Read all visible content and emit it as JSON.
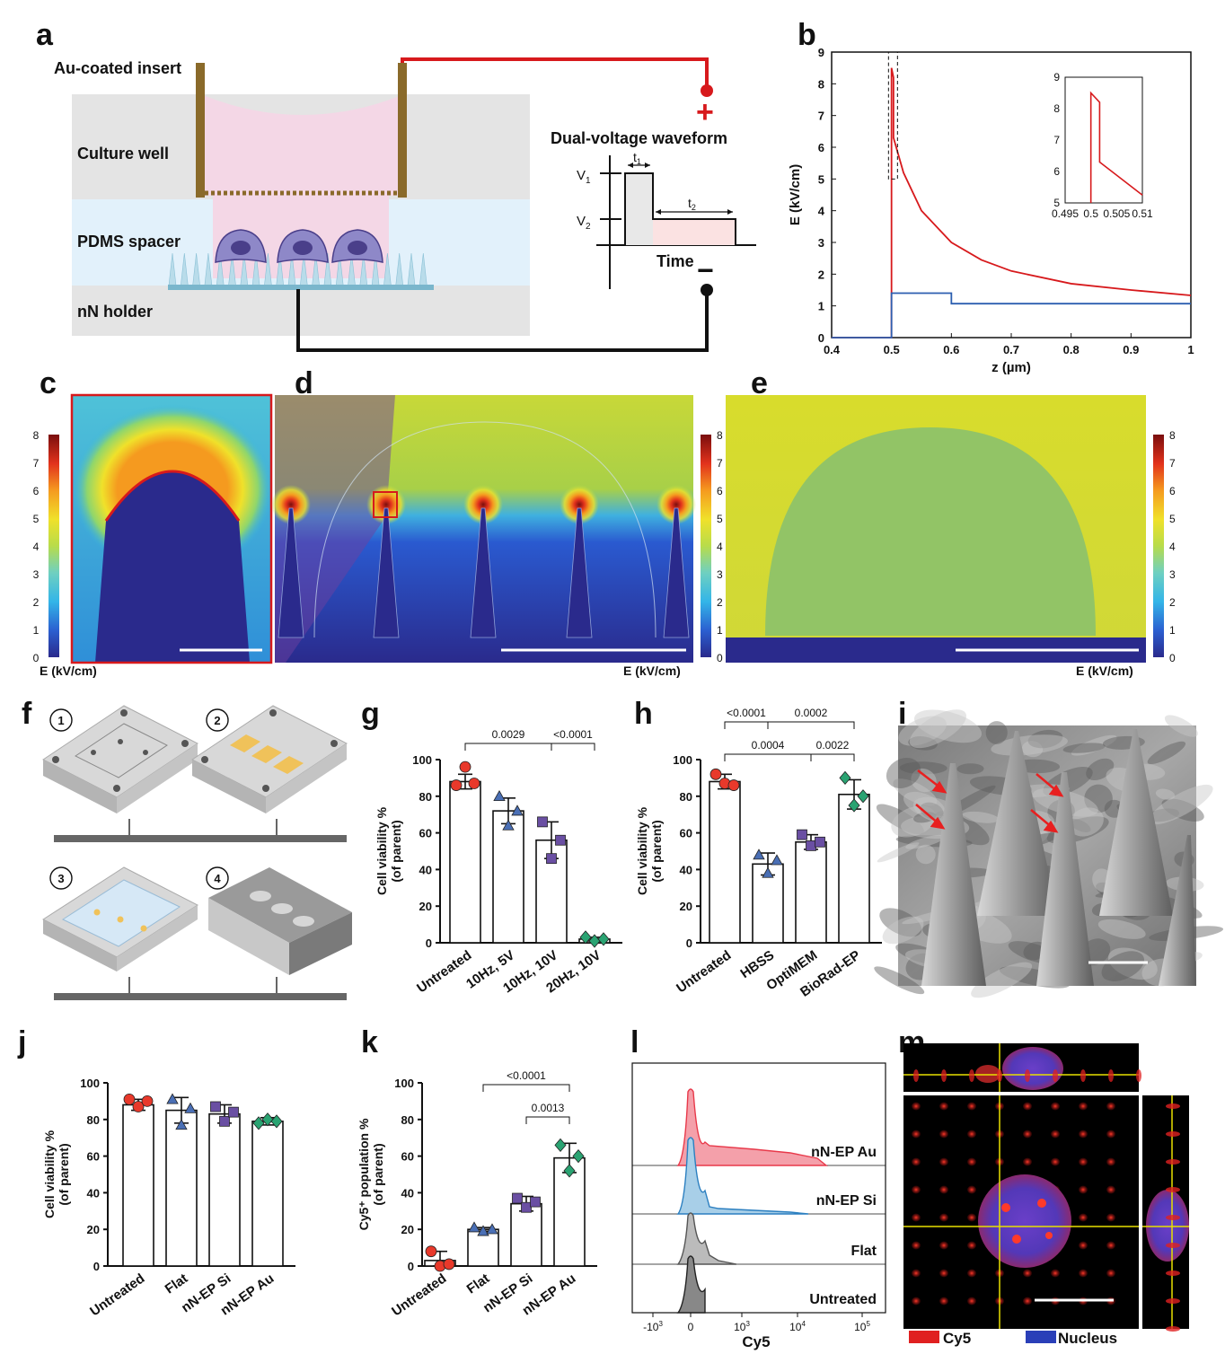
{
  "panel_labels": {
    "a": "a",
    "b": "b",
    "c": "c",
    "d": "d",
    "e": "e",
    "f": "f",
    "g": "g",
    "h": "h",
    "i": "i",
    "j": "j",
    "k": "k",
    "l": "l",
    "m": "m"
  },
  "panel_a": {
    "insert_label": "Au-coated insert",
    "culture_well": "Culture well",
    "pdms_spacer": "PDMS spacer",
    "nn_holder": "nN holder",
    "waveform_title": "Dual-voltage waveform",
    "plus": "+",
    "minus": "−",
    "v1": "V",
    "v1_sub": "1",
    "v2": "V",
    "v2_sub": "2",
    "t1": "t",
    "t1_sub": "1",
    "t2": "t",
    "t2_sub": "2",
    "time": "Time"
  },
  "colorbar": {
    "ticks": [
      "8",
      "7",
      "6",
      "5",
      "4",
      "3",
      "2",
      "1",
      "0"
    ],
    "label": "E (kV/cm)"
  },
  "panel_f": {
    "steps": [
      "1",
      "2",
      "3",
      "4"
    ]
  },
  "chart_data": [
    {
      "panel": "b",
      "type": "line",
      "ylabel": "E (kV/cm)",
      "xlabel": "z (µm)",
      "xlim": [
        0.4,
        1.0
      ],
      "ylim": [
        0,
        9
      ],
      "xticks": [
        "0.4",
        "0.5",
        "0.6",
        "0.7",
        "0.8",
        "0.9",
        "1"
      ],
      "yticks": [
        "0",
        "1",
        "2",
        "3",
        "4",
        "5",
        "6",
        "7",
        "8",
        "9"
      ],
      "series": [
        {
          "color": "#d7191c",
          "x": [
            0.4,
            0.5,
            0.5,
            0.5033,
            0.5033,
            0.52,
            0.55,
            0.6,
            0.65,
            0.7,
            0.8,
            0.9,
            1.0
          ],
          "y": [
            0,
            0,
            8.5,
            8.2,
            6.3,
            5.2,
            4.0,
            3.0,
            2.45,
            2.1,
            1.7,
            1.5,
            1.33
          ]
        },
        {
          "color": "#2c5fb0",
          "x": [
            0.4,
            0.5,
            0.5,
            0.6,
            0.6,
            1.0
          ],
          "y": [
            0,
            0,
            1.4,
            1.4,
            1.07,
            1.07
          ]
        }
      ],
      "inset": {
        "xlim": [
          0.495,
          0.51
        ],
        "ylim": [
          5,
          9
        ],
        "xticks": [
          "0.495",
          "0.5",
          "0.505",
          "0.51"
        ],
        "yticks": [
          "5",
          "6",
          "7",
          "8",
          "9"
        ],
        "x": [
          0.5,
          0.5,
          0.5017,
          0.5017,
          0.51
        ],
        "y": [
          5,
          8.5,
          8.2,
          6.3,
          5.25
        ]
      }
    },
    {
      "panel": "g",
      "type": "bar",
      "ylabel": "Cell viability %",
      "ylabel2": "(of parent)",
      "ylim": [
        0,
        100
      ],
      "yticks": [
        "0",
        "20",
        "40",
        "60",
        "80",
        "100"
      ],
      "categories": [
        "Untreated",
        "10Hz, 5V",
        "10Hz, 10V",
        "20Hz, 10V"
      ],
      "values": [
        88,
        72,
        56,
        2
      ],
      "sd": [
        4,
        7,
        10,
        1
      ],
      "points": [
        [
          86,
          96,
          87
        ],
        [
          80,
          64,
          72
        ],
        [
          66,
          46,
          56
        ],
        [
          3,
          1,
          2
        ]
      ],
      "markers": [
        "circle",
        "triangle",
        "square",
        "diamond"
      ],
      "colors": [
        "#e8392b",
        "#4a6fb5",
        "#6a4fa3",
        "#2aa372"
      ],
      "brackets": [
        {
          "from": 0,
          "to": 2,
          "label": "0.0029"
        },
        {
          "from": 2,
          "to": 3,
          "label": "<0.0001"
        }
      ]
    },
    {
      "panel": "h",
      "type": "bar",
      "ylabel": "Cell viability %",
      "ylabel2": "(of parent)",
      "ylim": [
        0,
        100
      ],
      "yticks": [
        "0",
        "20",
        "40",
        "60",
        "80",
        "100"
      ],
      "categories": [
        "Untreated",
        "HBSS",
        "OptiMEM",
        "BioRad-EP"
      ],
      "values": [
        88,
        43,
        55,
        81
      ],
      "sd": [
        4,
        6,
        4,
        8
      ],
      "points": [
        [
          92,
          87,
          86
        ],
        [
          48,
          38,
          45
        ],
        [
          59,
          53,
          55
        ],
        [
          90,
          75,
          80
        ]
      ],
      "markers": [
        "circle",
        "triangle",
        "square",
        "diamond"
      ],
      "colors": [
        "#e8392b",
        "#4a6fb5",
        "#6a4fa3",
        "#2aa372"
      ],
      "brackets": [
        {
          "from": 0,
          "to": 1,
          "label": "<0.0001"
        },
        {
          "from": 1,
          "to": 3,
          "label": "0.0002"
        },
        {
          "from": 0,
          "to": 2,
          "label": "0.0004"
        },
        {
          "from": 2,
          "to": 3,
          "label": "0.0022"
        }
      ]
    },
    {
      "panel": "j",
      "type": "bar",
      "ylabel": "Cell viability %",
      "ylabel2": "(of parent)",
      "ylim": [
        0,
        100
      ],
      "yticks": [
        "0",
        "20",
        "40",
        "60",
        "80",
        "100"
      ],
      "categories": [
        "Untreated",
        "Flat",
        "nN-EP Si",
        "nN-EP Au"
      ],
      "values": [
        88,
        85,
        83,
        79
      ],
      "sd": [
        3,
        7,
        5,
        2
      ],
      "points": [
        [
          91,
          87,
          90
        ],
        [
          91,
          77,
          86
        ],
        [
          87,
          79,
          84
        ],
        [
          78,
          80,
          79
        ]
      ],
      "markers": [
        "circle",
        "triangle",
        "square",
        "diamond"
      ],
      "colors": [
        "#e8392b",
        "#4a6fb5",
        "#6a4fa3",
        "#2aa372"
      ],
      "brackets": []
    },
    {
      "panel": "k",
      "type": "bar",
      "ylabel": "Cy5⁺ population %",
      "ylabel2": "(of parent)",
      "ylim": [
        0,
        100
      ],
      "yticks": [
        "0",
        "20",
        "40",
        "60",
        "80",
        "100"
      ],
      "categories": [
        "Untreated",
        "Flat",
        "nN-EP Si",
        "nN-EP Au"
      ],
      "values": [
        3,
        20,
        34,
        59
      ],
      "sd": [
        5,
        1,
        4,
        8
      ],
      "points": [
        [
          8,
          0,
          1
        ],
        [
          21,
          19,
          20
        ],
        [
          37,
          32,
          35
        ],
        [
          66,
          52,
          60
        ]
      ],
      "markers": [
        "circle",
        "triangle",
        "square",
        "diamond"
      ],
      "colors": [
        "#e8392b",
        "#4a6fb5",
        "#6a4fa3",
        "#2aa372"
      ],
      "brackets": [
        {
          "from": 1,
          "to": 3,
          "label": "<0.0001"
        },
        {
          "from": 2,
          "to": 3,
          "label": "0.0013"
        }
      ]
    },
    {
      "panel": "l",
      "type": "area",
      "xlabel": "Cy5",
      "series": [
        {
          "name": "nN-EP Au",
          "color": "#e8394a"
        },
        {
          "name": "nN-EP Si",
          "color": "#2b7fc0"
        },
        {
          "name": "Flat",
          "color": "#555555"
        },
        {
          "name": "Untreated",
          "color": "#222222"
        }
      ]
    }
  ],
  "panel_m": {
    "legend_cy5": "Cy5",
    "legend_nucleus": "Nucleus"
  }
}
